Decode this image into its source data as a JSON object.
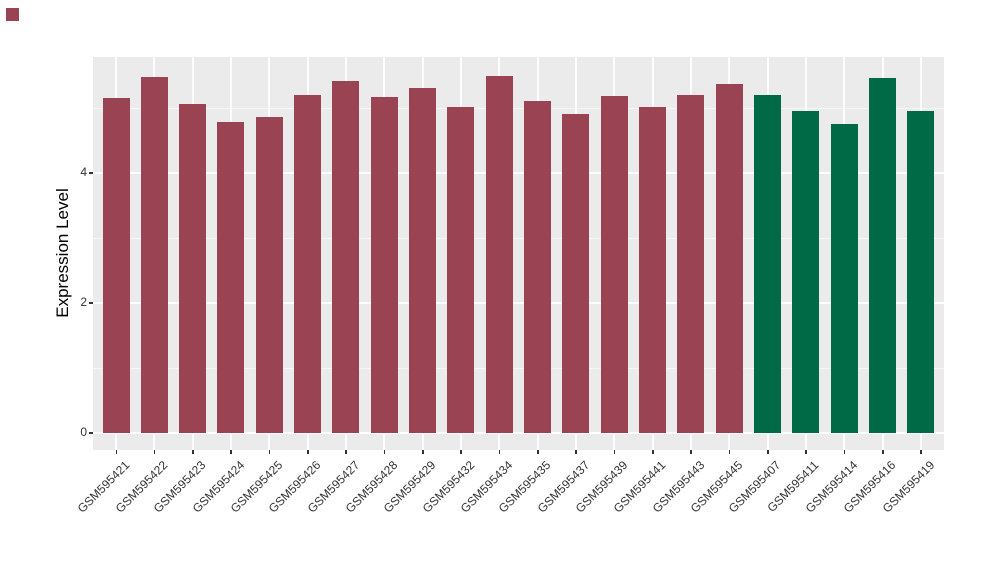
{
  "chart_data": {
    "type": "bar",
    "title": "",
    "xlabel": "",
    "ylabel": "Expression Level",
    "yticks": [
      0,
      2,
      4
    ],
    "minor_gridlines": [
      1,
      3,
      5
    ],
    "ylim": [
      0,
      5.8
    ],
    "grid": true,
    "legend_position": "none",
    "panel_background": "#ebebeb",
    "gridline_color": "#ffffff",
    "axis_text_color": "#333333",
    "categories": [
      "GSM595421",
      "GSM595422",
      "GSM595423",
      "GSM595424",
      "GSM595425",
      "GSM595426",
      "GSM595427",
      "GSM595428",
      "GSM595429",
      "GSM595432",
      "GSM595434",
      "GSM595435",
      "GSM595437",
      "GSM595439",
      "GSM595441",
      "GSM595443",
      "GSM595445",
      "GSM595407",
      "GSM595411",
      "GSM595414",
      "GSM595416",
      "GSM595419"
    ],
    "values": [
      5.16,
      5.47,
      5.06,
      4.78,
      4.86,
      5.2,
      5.41,
      5.17,
      5.31,
      5.02,
      5.49,
      5.11,
      4.9,
      5.18,
      5.01,
      5.2,
      5.37,
      5.2,
      4.95,
      4.76,
      5.46,
      4.96
    ],
    "bar_groups": [
      "red",
      "red",
      "red",
      "red",
      "red",
      "red",
      "red",
      "red",
      "red",
      "red",
      "red",
      "red",
      "red",
      "red",
      "red",
      "red",
      "red",
      "green",
      "green",
      "green",
      "green",
      "green"
    ],
    "group_colors": {
      "red": "#9a4352",
      "green": "#006a47"
    }
  },
  "decorations": {
    "corner_marker_color": "#9a4352"
  }
}
